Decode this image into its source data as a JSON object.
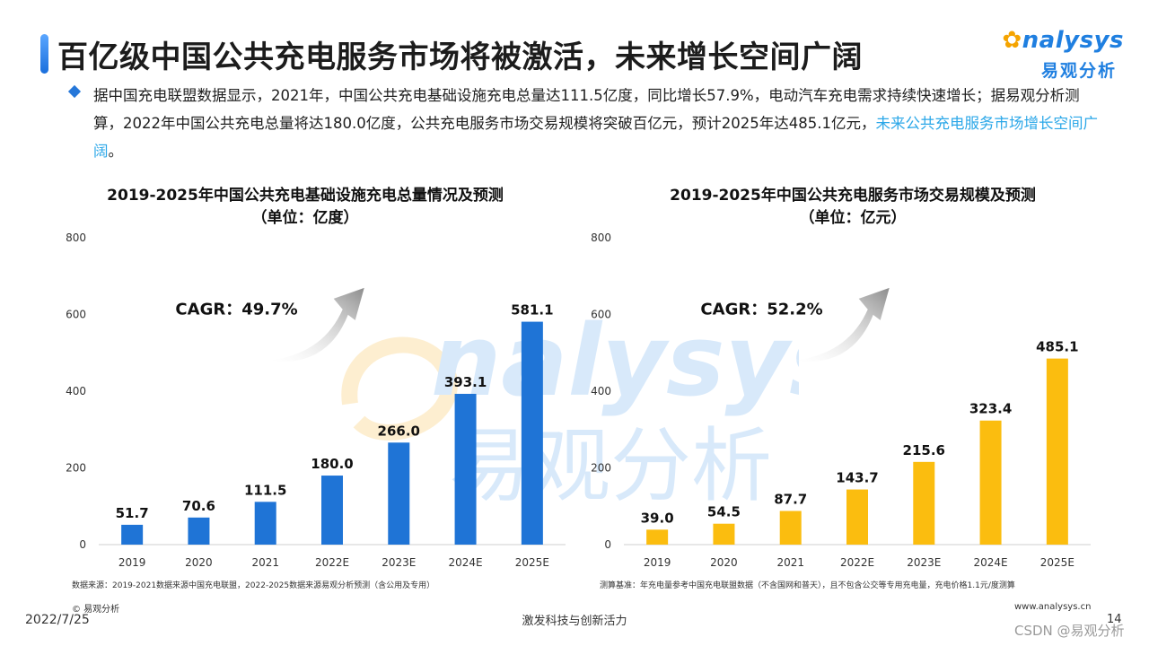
{
  "page": {
    "title": "百亿级中国公共充电服务市场将被激活，未来增长空间广阔",
    "logo_en": "nalysys",
    "logo_cn": "易观分析"
  },
  "bullet": {
    "text_main": "据中国充电联盟数据显示，2021年，中国公共充电基础设施充电总量达111.5亿度，同比增长57.9%，电动汽车充电需求持续快速增长；据易观分析测算，2022年中国公共充电总量将达180.0亿度，公共充电服务市场交易规模将突破百亿元，预计2025年达485.1亿元，",
    "text_highlight": "未来公共充电服务市场增长空间广阔",
    "text_end": "。"
  },
  "chart_data": [
    {
      "type": "bar",
      "title": "2019-2025年中国公共充电基础设施充电总量情况及预测",
      "subtitle": "（单位：亿度）",
      "categories": [
        "2019",
        "2020",
        "2021",
        "2022E",
        "2023E",
        "2024E",
        "2025E"
      ],
      "values": [
        51.7,
        70.6,
        111.5,
        180.0,
        266.0,
        393.1,
        581.1
      ],
      "value_labels": [
        "51.7",
        "70.6",
        "111.5",
        "180.0",
        "266.0",
        "393.1",
        "581.1"
      ],
      "yticks": [
        "0",
        "200",
        "400",
        "600",
        "800"
      ],
      "ylim": [
        0,
        800
      ],
      "color": "#1f74d6",
      "annotation": "CAGR：49.7%",
      "source": "数据来源：2019-2021数据来源中国充电联盟，2022-2025数据来源易观分析预测（含公用及专用）"
    },
    {
      "type": "bar",
      "title": "2019-2025年中国公共充电服务市场交易规模及预测",
      "subtitle": "（单位：亿元）",
      "categories": [
        "2019",
        "2020",
        "2021",
        "2022E",
        "2023E",
        "2024E",
        "2025E"
      ],
      "values": [
        39.0,
        54.5,
        87.7,
        143.7,
        215.6,
        323.4,
        485.1
      ],
      "value_labels": [
        "39.0",
        "54.5",
        "87.7",
        "143.7",
        "215.6",
        "323.4",
        "485.1"
      ],
      "yticks": [
        "0",
        "200",
        "400",
        "600",
        "800"
      ],
      "ylim": [
        0,
        800
      ],
      "color": "#fbbd0f",
      "annotation": "CAGR：52.2%",
      "source": "测算基准：年充电量参考中国充电联盟数据（不含国网和普天），且不包含公交等专用充电量，充电价格1.1元/度测算"
    }
  ],
  "footer": {
    "copyright": "© 易观分析",
    "date": "2022/7/25",
    "slogan": "激发科技与创新活力",
    "url": "www.analysys.cn",
    "page": "14",
    "csdn": "CSDN @易观分析"
  },
  "colors": {
    "accent": "#1f74d6",
    "bar_blue": "#1f74d6",
    "bar_yellow": "#fbbd0f",
    "highlight": "#2ba7e8"
  }
}
